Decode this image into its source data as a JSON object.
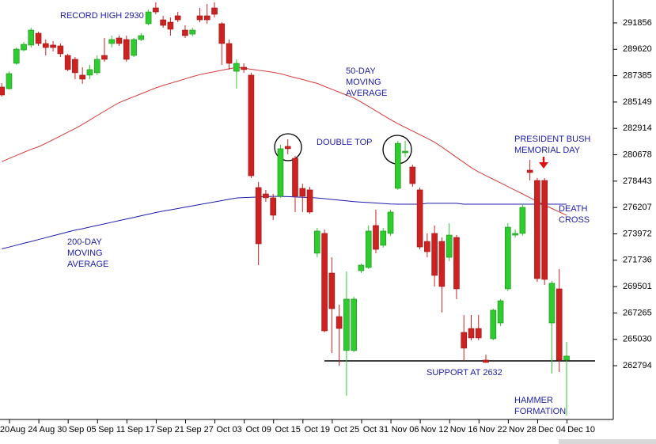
{
  "chart_data": {
    "type": "candlestick",
    "categories": [
      "20",
      null,
      null,
      "Aug 24",
      null,
      null,
      null,
      "Aug 30",
      null,
      null,
      null,
      "Sep 05",
      null,
      null,
      null,
      "Sep 11",
      null,
      null,
      null,
      "Sep 17",
      null,
      null,
      null,
      "Sep 21",
      null,
      null,
      null,
      "Sep 27",
      null,
      null,
      null,
      "Oct 03",
      null,
      null,
      null,
      "Oct 09",
      null,
      null,
      null,
      "Oct 15",
      null,
      null,
      null,
      "Oct 19",
      null,
      null,
      null,
      "Oct 25",
      null,
      null,
      null,
      "Oct 31",
      null,
      null,
      null,
      "Nov 06",
      null,
      null,
      null,
      "Nov 12",
      null,
      null,
      null,
      "Nov 16",
      null,
      null,
      null,
      "Nov 22",
      null,
      null,
      null,
      "Nov 28",
      null,
      null,
      null,
      "Dec 04",
      null,
      null,
      null,
      "Dec 10"
    ],
    "open": [
      286420,
      286280,
      288430,
      289570,
      289980,
      290980,
      290110,
      289980,
      289910,
      289100,
      288770,
      287430,
      287430,
      287630,
      289100,
      290110,
      290580,
      290450,
      289100,
      290450,
      291790,
      293130,
      292120,
      291920,
      292460,
      291250,
      290910,
      292460,
      292460,
      293130,
      291790,
      290110,
      287760,
      288100,
      287430,
      277900,
      277360,
      277030,
      277160,
      281390,
      280380,
      277830,
      277700,
      272330,
      274010,
      270650,
      266960,
      264080,
      264080,
      270850,
      271120,
      274680,
      273000,
      274010,
      277830,
      280850,
      279640,
      277700,
      273330,
      274010,
      273330,
      271990,
      273670,
      265620,
      265950,
      265950,
      263270,
      265080,
      266420,
      269310,
      273870,
      274010,
      279370,
      278500,
      278500,
      266420,
      269310,
      263270,
      null,
      null
    ],
    "high": [
      286750,
      287760,
      289770,
      290240,
      291450,
      291120,
      290450,
      290310,
      290110,
      289240,
      288970,
      288100,
      288300,
      289100,
      290580,
      290780,
      290780,
      290780,
      290580,
      290980,
      293000,
      293600,
      292460,
      292320,
      292790,
      291650,
      291450,
      293130,
      293460,
      293600,
      291920,
      290450,
      288770,
      288430,
      287630,
      278370,
      277700,
      277360,
      281520,
      281990,
      280580,
      278230,
      277960,
      274480,
      274340,
      271990,
      267970,
      270780,
      268640,
      271460,
      274680,
      276020,
      274480,
      276020,
      281860,
      281860,
      279840,
      277900,
      274010,
      274680,
      273670,
      274880,
      273870,
      267090,
      267090,
      267090,
      263740,
      267630,
      268440,
      274880,
      274340,
      276490,
      280250,
      278700,
      278700,
      269980,
      270990,
      264810,
      null,
      null
    ],
    "low": [
      285610,
      286220,
      288300,
      289440,
      289770,
      289910,
      289100,
      289440,
      288970,
      287760,
      287090,
      286690,
      287090,
      287430,
      288570,
      289770,
      289910,
      288570,
      288970,
      290310,
      291650,
      292590,
      291450,
      290780,
      291920,
      290580,
      290710,
      291920,
      291790,
      292320,
      288300,
      287900,
      286280,
      287630,
      278700,
      271320,
      276690,
      275150,
      277030,
      280720,
      275820,
      275820,
      275680,
      271990,
      265620,
      263870,
      262800,
      260250,
      263940,
      270650,
      270990,
      272330,
      272800,
      273800,
      277700,
      280510,
      277960,
      272660,
      271990,
      269510,
      267300,
      271660,
      268440,
      263270,
      264950,
      264950,
      263070,
      264950,
      266150,
      269110,
      273670,
      273800,
      278500,
      269910,
      269640,
      262130,
      262260,
      258570,
      null,
      null
    ],
    "close": [
      285750,
      287560,
      289640,
      290040,
      291250,
      290110,
      289770,
      289770,
      289240,
      287900,
      287630,
      287090,
      287900,
      288770,
      288770,
      290450,
      290110,
      288770,
      290450,
      290780,
      292790,
      292790,
      291650,
      291320,
      292120,
      290780,
      291250,
      292120,
      292120,
      292590,
      290110,
      288430,
      288430,
      287900,
      278900,
      273130,
      277030,
      275550,
      281190,
      281190,
      277160,
      277160,
      275820,
      274210,
      265750,
      267630,
      265950,
      268440,
      268440,
      271320,
      274210,
      272660,
      274210,
      275820,
      281650,
      280980,
      278230,
      272860,
      272460,
      270450,
      269510,
      273870,
      269310,
      264280,
      265150,
      265150,
      263070,
      267500,
      268300,
      274540,
      274010,
      276220,
      279170,
      270180,
      270110,
      269780,
      263270,
      263610,
      null,
      null
    ],
    "up_color": "#2ecc2e",
    "down_color": "#cc2222",
    "moving_averages": [
      {
        "color": "#d63a3a",
        "values": [
          280100,
          280360,
          280620,
          280880,
          281140,
          281350,
          281640,
          281960,
          282270,
          282590,
          282900,
          283250,
          283620,
          284000,
          284370,
          284740,
          285100,
          285350,
          285600,
          285850,
          286100,
          286350,
          286550,
          286740,
          286920,
          287110,
          287300,
          287470,
          287600,
          287720,
          287850,
          287970,
          288090,
          288020,
          287930,
          287850,
          287760,
          287670,
          287550,
          287380,
          287220,
          287060,
          286890,
          286730,
          286480,
          286230,
          285980,
          285740,
          285490,
          285150,
          284780,
          284400,
          284030,
          283660,
          283310,
          283000,
          282690,
          282380,
          282070,
          281750,
          281330,
          280900,
          280460,
          280030,
          279590,
          279220,
          278910,
          278600,
          278290,
          277980,
          277670,
          277360,
          277040,
          276730,
          276420,
          276120,
          275830,
          275550,
          null,
          null
        ]
      },
      {
        "color": "#1c1ca8",
        "values": [
          272700,
          272850,
          273010,
          273170,
          273330,
          273490,
          273650,
          273810,
          273970,
          274130,
          274290,
          274410,
          274550,
          274680,
          274820,
          274960,
          275100,
          275230,
          275370,
          275510,
          275640,
          275780,
          275900,
          276010,
          276120,
          276230,
          276350,
          276460,
          276570,
          276680,
          276790,
          276910,
          277020,
          277050,
          277080,
          277100,
          277130,
          277150,
          277150,
          277130,
          277100,
          277080,
          277060,
          277020,
          276960,
          276890,
          276830,
          276770,
          276700,
          276660,
          276630,
          276590,
          276550,
          276510,
          276490,
          276490,
          276490,
          276490,
          276560,
          276560,
          276560,
          276560,
          276560,
          276490,
          276490,
          276490,
          276490,
          276490,
          276490,
          276490,
          276490,
          276490,
          276490,
          276490,
          276490,
          276490,
          276490,
          276490,
          null,
          null
        ]
      }
    ],
    "reference_lines": [
      {
        "value": 263200,
        "color": "#000000"
      }
    ],
    "annotations": [
      {
        "lines": [
          "RECORD HIGH 2930"
        ]
      },
      {
        "lines": [
          "50-DAY",
          "MOVING",
          "AVERAGE"
        ]
      },
      {
        "lines": [
          "DOUBLE TOP"
        ]
      },
      {
        "lines": [
          "PRESIDENT BUSH",
          "MEMORIAL DAY"
        ]
      },
      {
        "lines": [
          "DEATH",
          "CROSS"
        ]
      },
      {
        "lines": [
          "200-DAY",
          "MOVING",
          "AVERAGE"
        ]
      },
      {
        "lines": [
          "SUPPORT AT 2632"
        ]
      },
      {
        "lines": [
          "HAMMER",
          "FORMATION"
        ]
      }
    ],
    "ylim": [
      258370,
      293800
    ],
    "yticks": [
      291856,
      289620,
      287385,
      285149,
      282914,
      280678,
      278443,
      276207,
      273972,
      271736,
      269501,
      267265,
      265030,
      262794
    ]
  }
}
